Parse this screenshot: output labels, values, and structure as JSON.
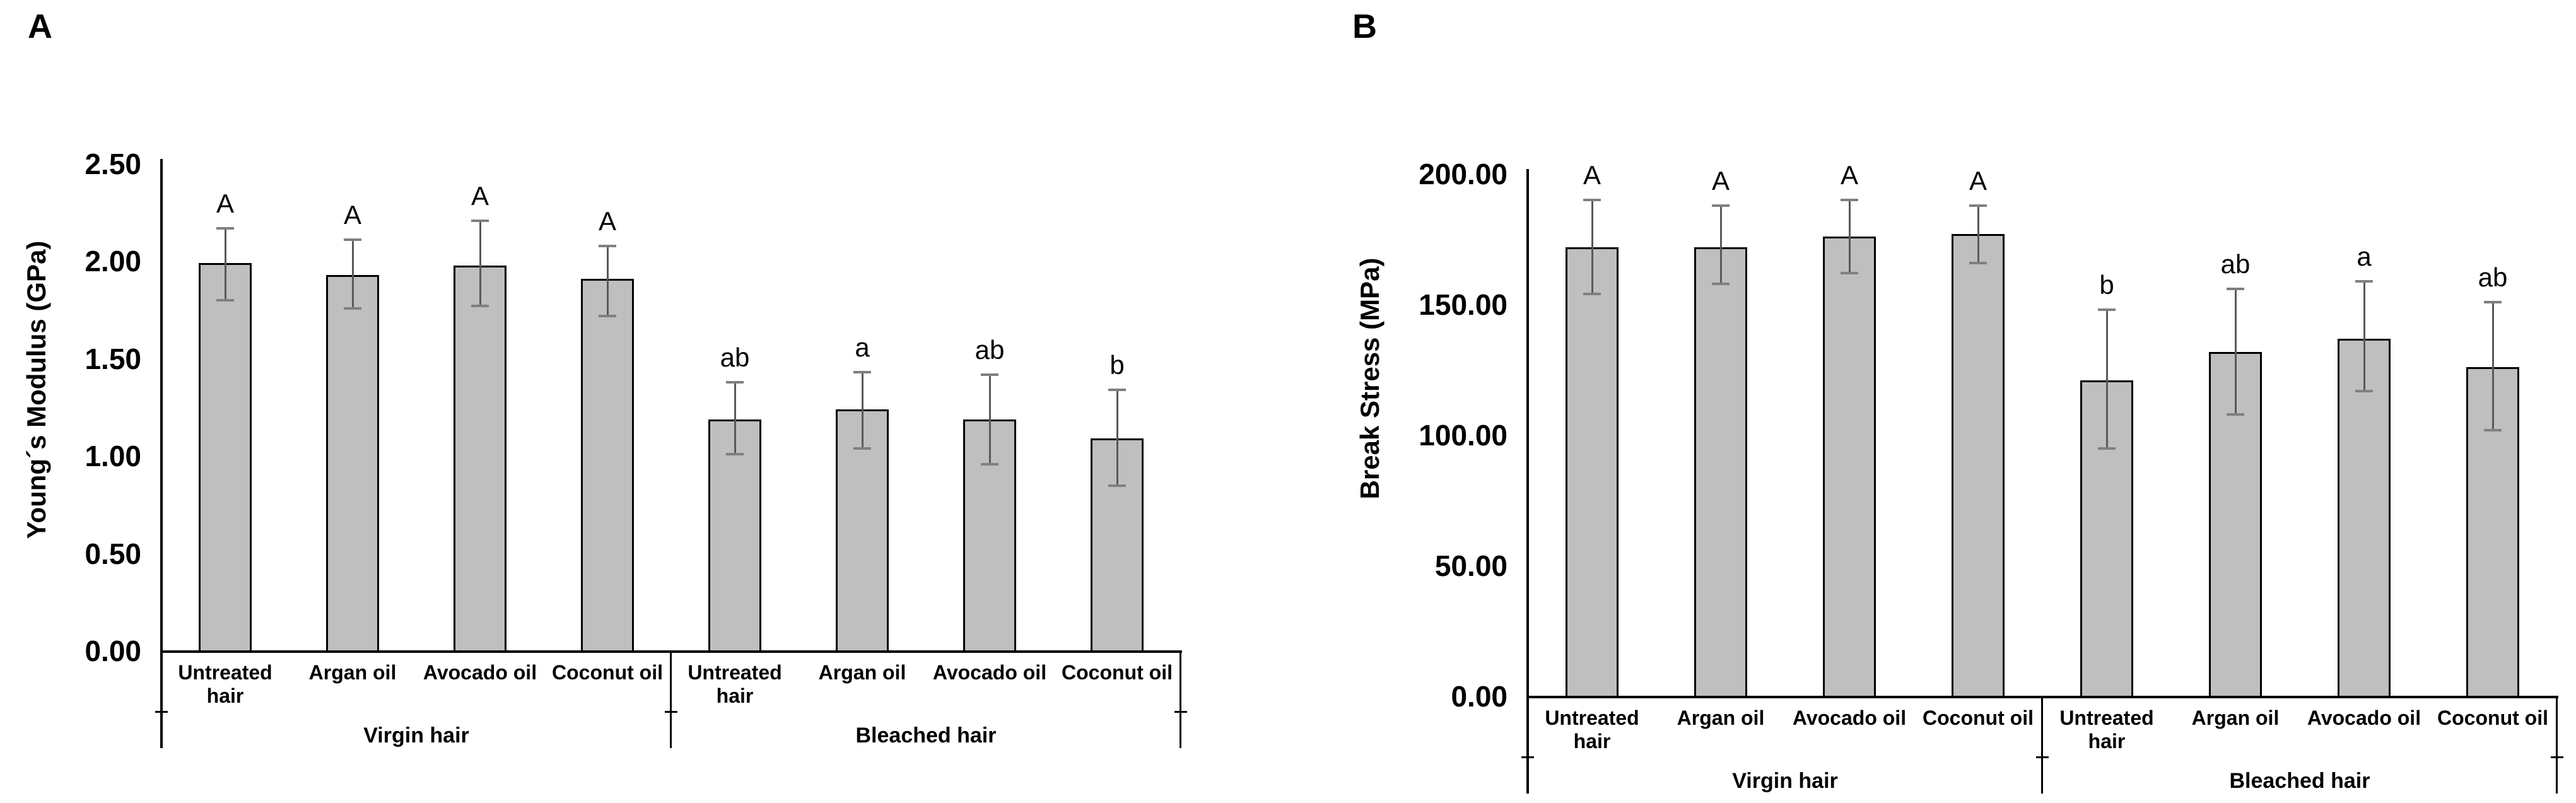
{
  "figure": {
    "description": "Two-panel bar chart figure comparing oil treatments on virgin and bleached hair"
  },
  "colors": {
    "bar_fill": "#bfbfbf",
    "bar_border": "#000000",
    "error_line": "#595959",
    "error_cap": "#808080",
    "axis": "#000000",
    "text": "#000000",
    "background": "#ffffff"
  },
  "chart_data": [
    {
      "type": "bar",
      "panel_label": "A",
      "title": "",
      "xlabel": "",
      "ylabel": "Young´s Modulus (GPa)",
      "ylim": [
        0,
        2.5
      ],
      "yticks": [
        0,
        0.5,
        1.0,
        1.5,
        2.0,
        2.5
      ],
      "ytick_labels": [
        "0.00",
        "0.50",
        "1.00",
        "1.50",
        "2.00",
        "2.50"
      ],
      "grid": false,
      "legend": "none",
      "groups": [
        {
          "label": "Virgin hair",
          "categories": [
            "Untreated hair",
            "Argan oil",
            "Avocado oil",
            "Coconut oil"
          ],
          "values": [
            1.99,
            1.93,
            1.98,
            1.91
          ],
          "error_low": [
            1.8,
            1.76,
            1.77,
            1.72
          ],
          "error_high": [
            2.17,
            2.11,
            2.21,
            2.08
          ],
          "sig_letters": [
            "A",
            "A",
            "A",
            "A"
          ]
        },
        {
          "label": "Bleached hair",
          "categories": [
            "Untreated hair",
            "Argan oil",
            "Avocado oil",
            "Coconut oil"
          ],
          "values": [
            1.19,
            1.24,
            1.19,
            1.09
          ],
          "error_low": [
            1.01,
            1.04,
            0.96,
            0.85
          ],
          "error_high": [
            1.38,
            1.43,
            1.42,
            1.34
          ],
          "sig_letters": [
            "ab",
            "a",
            "ab",
            "b"
          ]
        }
      ]
    },
    {
      "type": "bar",
      "panel_label": "B",
      "title": "",
      "xlabel": "",
      "ylabel": "Break Stress (MPa)",
      "ylim": [
        0,
        200
      ],
      "yticks": [
        0,
        50,
        100,
        150,
        200
      ],
      "ytick_labels": [
        "0.00",
        "50.00",
        "100.00",
        "150.00",
        "200.00"
      ],
      "grid": false,
      "legend": "none",
      "groups": [
        {
          "label": "Virgin hair",
          "categories": [
            "Untreated hair",
            "Argan oil",
            "Avocado oil",
            "Coconut oil"
          ],
          "values": [
            172,
            172,
            176,
            177
          ],
          "error_low": [
            154,
            158,
            162,
            166
          ],
          "error_high": [
            190,
            188,
            190,
            188
          ],
          "sig_letters": [
            "A",
            "A",
            "A",
            "A"
          ]
        },
        {
          "label": "Bleached hair",
          "categories": [
            "Untreated hair",
            "Argan oil",
            "Avocado oil",
            "Coconut oil"
          ],
          "values": [
            121,
            132,
            137,
            126
          ],
          "error_low": [
            95,
            108,
            117,
            102
          ],
          "error_high": [
            148,
            156,
            159,
            151
          ],
          "sig_letters": [
            "b",
            "ab",
            "a",
            "ab"
          ]
        }
      ]
    }
  ]
}
